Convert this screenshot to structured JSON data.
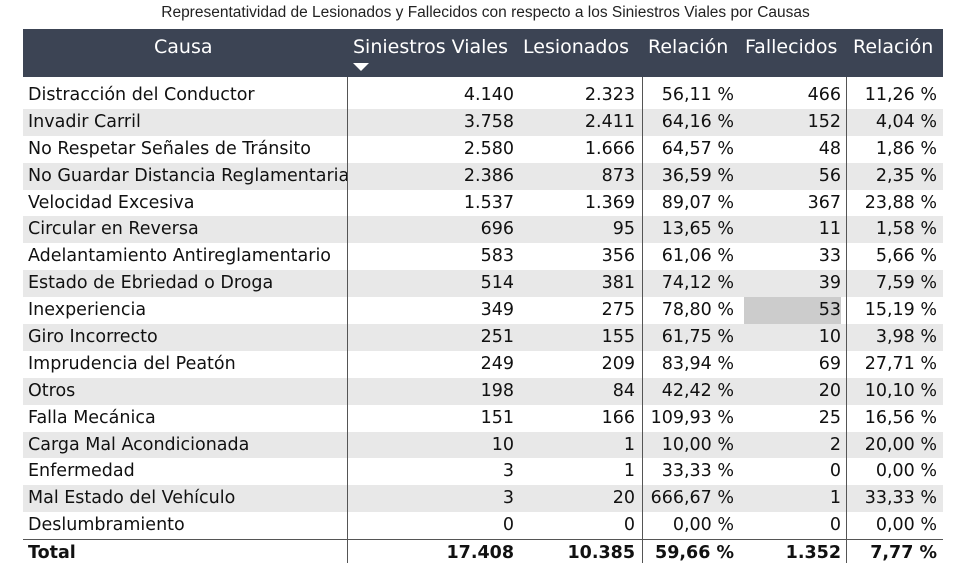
{
  "title": "Representatividad de Lesionados y Fallecidos con respecto a los Siniestros Viales por Causas",
  "chart_data": {
    "type": "table",
    "columns": [
      "Causa",
      "Siniestros Viales",
      "Lesionados",
      "Relación",
      "Fallecidos",
      "Relación"
    ],
    "sorted_column": "Siniestros Viales",
    "sort_direction": "descending",
    "rows": [
      [
        "Distracción del Conductor",
        "4.140",
        "2.323",
        "56,11 %",
        "466",
        "11,26 %"
      ],
      [
        "Invadir Carril",
        "3.758",
        "2.411",
        "64,16 %",
        "152",
        "4,04 %"
      ],
      [
        "No Respetar Señales de Tránsito",
        "2.580",
        "1.666",
        "64,57 %",
        "48",
        "1,86 %"
      ],
      [
        "No Guardar Distancia Reglamentaria",
        "2.386",
        "873",
        "36,59 %",
        "56",
        "2,35 %"
      ],
      [
        "Velocidad Excesiva",
        "1.537",
        "1.369",
        "89,07 %",
        "367",
        "23,88 %"
      ],
      [
        "Circular en Reversa",
        "696",
        "95",
        "13,65 %",
        "11",
        "1,58 %"
      ],
      [
        "Adelantamiento Antireglamentario",
        "583",
        "356",
        "61,06 %",
        "33",
        "5,66 %"
      ],
      [
        "Estado de Ebriedad o Droga",
        "514",
        "381",
        "74,12 %",
        "39",
        "7,59 %"
      ],
      [
        "Inexperiencia",
        "349",
        "275",
        "78,80 %",
        "53",
        "15,19 %"
      ],
      [
        "Giro Incorrecto",
        "251",
        "155",
        "61,75 %",
        "10",
        "3,98 %"
      ],
      [
        "Imprudencia del Peatón",
        "249",
        "209",
        "83,94 %",
        "69",
        "27,71 %"
      ],
      [
        "Otros",
        "198",
        "84",
        "42,42 %",
        "20",
        "10,10 %"
      ],
      [
        "Falla Mecánica",
        "151",
        "166",
        "109,93 %",
        "25",
        "16,56 %"
      ],
      [
        "Carga Mal Acondicionada",
        "10",
        "1",
        "10,00 %",
        "2",
        "20,00 %"
      ],
      [
        "Enfermedad",
        "3",
        "1",
        "33,33 %",
        "0",
        "0,00 %"
      ],
      [
        "Mal Estado del Vehículo",
        "3",
        "20",
        "666,67 %",
        "1",
        "33,33 %"
      ],
      [
        "Deslumbramiento",
        "0",
        "0",
        "0,00 %",
        "0",
        "0,00 %"
      ]
    ],
    "total": [
      "Total",
      "17.408",
      "10.385",
      "59,66 %",
      "1.352",
      "7,77 %"
    ],
    "highlighted_cell": {
      "row": 8,
      "column": 4
    },
    "colors": {
      "header_bg": "#3c4454",
      "header_text": "#ffffff",
      "alt_row": "#e8e8e8",
      "highlight": "#cccccc"
    }
  }
}
